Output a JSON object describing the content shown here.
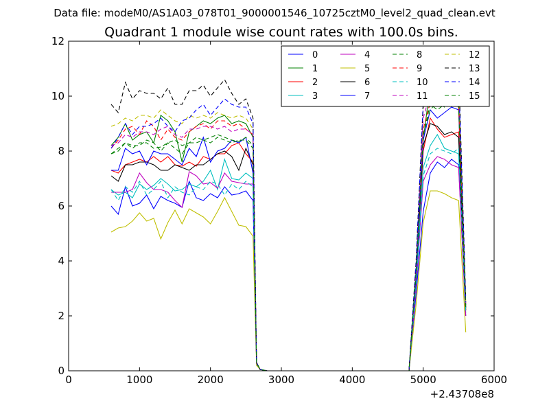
{
  "chart_data": {
    "type": "line",
    "suptitle": "Data file: modeM0/AS1A03_078T01_9000001546_10725cztM0_level2_quad_clean.evt",
    "title": "Quadrant 1 module wise count rates with 100.0s bins.",
    "xlabel": "",
    "ylabel": "",
    "xlim": [
      0,
      6000
    ],
    "ylim": [
      0,
      12
    ],
    "x_offset_label": "+2.43708e8",
    "xticks": [
      0,
      1000,
      2000,
      3000,
      4000,
      5000,
      6000
    ],
    "yticks": [
      0,
      2,
      4,
      6,
      8,
      10,
      12
    ],
    "grid": false,
    "legend_position": "top-right",
    "legend_columns": 4,
    "x": [
      600,
      700,
      800,
      900,
      1000,
      1100,
      1200,
      1300,
      1400,
      1500,
      1600,
      1700,
      1800,
      1900,
      2000,
      2100,
      2200,
      2300,
      2400,
      2500,
      2600,
      2650,
      2700,
      2800,
      2900,
      3000,
      3500,
      4000,
      4500,
      4800,
      4900,
      5000,
      5100,
      5200,
      5300,
      5400,
      5500,
      5600
    ],
    "series": [
      {
        "name": "0",
        "color": "#0000ff",
        "dash": "solid",
        "values": [
          6.0,
          5.7,
          6.7,
          6.0,
          6.1,
          6.4,
          5.9,
          6.35,
          6.2,
          6.1,
          5.95,
          6.9,
          6.3,
          6.2,
          6.45,
          6.3,
          6.7,
          6.4,
          6.45,
          6.55,
          6.2,
          0.25,
          0.05,
          0,
          0,
          0,
          0,
          0,
          0,
          0,
          2.8,
          5.8,
          7.2,
          7.6,
          7.4,
          7.7,
          7.5,
          2.0
        ]
      },
      {
        "name": "1",
        "color": "#008000",
        "dash": "solid",
        "values": [
          8.2,
          8.5,
          9.0,
          8.4,
          8.6,
          8.7,
          8.3,
          9.3,
          9.1,
          8.7,
          7.6,
          8.7,
          8.9,
          9.1,
          9.0,
          9.2,
          9.3,
          9.0,
          9.1,
          9.0,
          8.5,
          0.3,
          0.05,
          0,
          0,
          0,
          0,
          0,
          0,
          0,
          3.6,
          8.4,
          10.4,
          10.7,
          10.4,
          10.2,
          9.8,
          2.4
        ]
      },
      {
        "name": "2",
        "color": "#ff0000",
        "dash": "solid",
        "values": [
          7.3,
          7.2,
          7.5,
          7.6,
          7.7,
          7.6,
          7.8,
          7.6,
          7.8,
          7.5,
          7.45,
          7.6,
          7.45,
          7.8,
          7.7,
          7.9,
          7.9,
          8.2,
          8.3,
          7.9,
          7.6,
          0.3,
          0.05,
          0,
          0,
          0,
          0,
          0,
          0,
          0,
          3.4,
          8.0,
          9.2,
          8.8,
          8.5,
          8.6,
          8.7,
          2.2
        ]
      },
      {
        "name": "3",
        "color": "#00bfbf",
        "dash": "solid",
        "values": [
          6.6,
          6.4,
          6.5,
          6.3,
          6.8,
          6.6,
          6.75,
          7.0,
          6.8,
          6.55,
          6.6,
          6.8,
          6.7,
          6.9,
          7.3,
          6.6,
          7.7,
          7.0,
          6.95,
          7.2,
          7.0,
          0.3,
          0.05,
          0,
          0,
          0,
          0,
          0,
          0,
          0,
          3.2,
          7.4,
          8.2,
          8.6,
          8.1,
          8.0,
          7.9,
          2.1
        ]
      },
      {
        "name": "4",
        "color": "#bf00bf",
        "dash": "solid",
        "values": [
          6.5,
          6.5,
          6.5,
          6.6,
          7.2,
          6.85,
          6.6,
          6.6,
          6.5,
          6.2,
          5.95,
          7.25,
          7.1,
          6.8,
          6.85,
          6.65,
          7.2,
          6.9,
          6.85,
          6.8,
          6.8,
          0.3,
          0.05,
          0,
          0,
          0,
          0,
          0,
          0,
          0,
          3.0,
          6.9,
          7.5,
          7.8,
          7.7,
          7.5,
          7.4,
          2.0
        ]
      },
      {
        "name": "5",
        "color": "#bfbf00",
        "dash": "solid",
        "values": [
          5.05,
          5.2,
          5.25,
          5.45,
          5.75,
          5.45,
          5.55,
          4.8,
          5.4,
          5.85,
          5.35,
          5.9,
          5.75,
          5.6,
          5.35,
          5.8,
          6.3,
          5.8,
          5.3,
          5.25,
          4.9,
          0.2,
          0.05,
          0,
          0,
          0,
          0,
          0,
          0,
          0,
          2.4,
          5.4,
          6.55,
          6.55,
          6.45,
          6.3,
          6.2,
          1.4
        ]
      },
      {
        "name": "6",
        "color": "#000000",
        "dash": "solid",
        "values": [
          7.1,
          6.9,
          7.5,
          7.5,
          7.6,
          7.6,
          7.5,
          7.3,
          7.3,
          7.5,
          7.4,
          7.3,
          7.5,
          7.5,
          7.7,
          7.9,
          8.0,
          7.8,
          7.3,
          8.1,
          7.5,
          0.3,
          0.05,
          0,
          0,
          0,
          0,
          0,
          0,
          0,
          3.5,
          8.2,
          9.0,
          8.9,
          8.6,
          8.7,
          8.5,
          2.2
        ]
      },
      {
        "name": "7",
        "color": "#0000ff",
        "dash": "solid",
        "values": [
          7.3,
          7.3,
          8.1,
          7.9,
          8.0,
          7.5,
          8.0,
          7.9,
          7.9,
          7.7,
          7.5,
          8.1,
          7.8,
          8.5,
          7.6,
          8.0,
          8.1,
          8.4,
          8.3,
          8.5,
          7.2,
          0.3,
          0.05,
          0,
          0,
          0,
          0,
          0,
          0,
          0,
          3.6,
          8.4,
          9.5,
          9.2,
          9.4,
          9.6,
          9.5,
          2.3
        ]
      },
      {
        "name": "8",
        "color": "#008000",
        "dash": "dashed",
        "values": [
          7.9,
          8.1,
          8.3,
          8.1,
          8.3,
          8.3,
          8.1,
          8.15,
          8.3,
          8.4,
          8.2,
          8.3,
          8.5,
          8.4,
          8.5,
          8.6,
          8.5,
          8.4,
          8.35,
          8.5,
          8.2,
          0.3,
          0.05,
          0,
          0,
          0,
          0,
          0,
          0,
          0,
          3.6,
          8.6,
          9.5,
          9.8,
          9.6,
          9.8,
          9.7,
          2.3
        ]
      },
      {
        "name": "9",
        "color": "#ff0000",
        "dash": "dashed",
        "values": [
          8.1,
          8.4,
          8.8,
          8.9,
          8.6,
          9.1,
          8.9,
          8.4,
          8.8,
          8.5,
          8.4,
          8.7,
          8.9,
          9.0,
          8.8,
          9.1,
          9.1,
          8.9,
          9.0,
          8.8,
          8.6,
          0.3,
          0.05,
          0,
          0,
          0,
          0,
          0,
          0,
          0,
          3.7,
          8.8,
          9.8,
          9.7,
          9.8,
          9.9,
          9.7,
          2.4
        ]
      },
      {
        "name": "10",
        "color": "#00bfbf",
        "dash": "dashed",
        "values": [
          6.6,
          6.2,
          6.7,
          6.5,
          6.9,
          6.4,
          6.6,
          6.9,
          6.3,
          6.7,
          6.5,
          6.4,
          6.7,
          6.6,
          6.9,
          6.8,
          6.4,
          6.8,
          6.6,
          6.9,
          6.7,
          0.3,
          0.05,
          0,
          0,
          0,
          0,
          0,
          0,
          0,
          3.1,
          7.1,
          7.9,
          8.1,
          8.0,
          7.9,
          8.1,
          2.1
        ]
      },
      {
        "name": "11",
        "color": "#bf00bf",
        "dash": "dashed",
        "values": [
          8.2,
          8.3,
          8.6,
          8.5,
          8.7,
          8.7,
          8.6,
          8.8,
          8.9,
          8.6,
          8.5,
          8.8,
          8.8,
          8.9,
          8.9,
          8.8,
          8.9,
          8.7,
          8.8,
          8.8,
          8.6,
          0.3,
          0.05,
          0,
          0,
          0,
          0,
          0,
          0,
          0,
          3.7,
          9.2,
          10.1,
          9.9,
          10.0,
          10.2,
          10.1,
          2.4
        ]
      },
      {
        "name": "12",
        "color": "#bfbf00",
        "dash": "dashed",
        "values": [
          8.9,
          9.0,
          9.2,
          9.1,
          9.3,
          9.3,
          9.2,
          9.5,
          9.3,
          9.1,
          9.0,
          9.3,
          9.2,
          9.3,
          9.2,
          9.4,
          9.3,
          9.2,
          9.3,
          9.2,
          8.8,
          0.3,
          0.05,
          0,
          0,
          0,
          0,
          0,
          0,
          0,
          3.8,
          9.5,
          10.6,
          10.4,
          10.6,
          10.5,
          10.6,
          2.5
        ]
      },
      {
        "name": "13",
        "color": "#000000",
        "dash": "dashed",
        "values": [
          9.7,
          9.4,
          10.5,
          9.9,
          10.2,
          10.1,
          10.1,
          9.9,
          10.3,
          9.7,
          9.7,
          10.2,
          10.2,
          10.4,
          10.0,
          10.3,
          10.6,
          10.1,
          9.7,
          9.9,
          9.2,
          0.3,
          0.05,
          0,
          0,
          0,
          0,
          0,
          0,
          0,
          4.0,
          9.8,
          11.2,
          11.2,
          11.0,
          11.3,
          11.1,
          2.6
        ]
      },
      {
        "name": "14",
        "color": "#0000ff",
        "dash": "dashed",
        "values": [
          8.1,
          8.5,
          9.0,
          8.6,
          8.9,
          8.9,
          9.0,
          9.2,
          8.9,
          8.7,
          9.1,
          9.2,
          9.5,
          9.7,
          9.3,
          9.6,
          9.9,
          9.7,
          9.6,
          9.6,
          9.0,
          0.3,
          0.05,
          0,
          0,
          0,
          0,
          0,
          0,
          0,
          3.9,
          9.7,
          10.9,
          10.8,
          10.6,
          11.0,
          10.7,
          2.5
        ]
      },
      {
        "name": "15",
        "color": "#008000",
        "dash": "dashed",
        "values": [
          7.9,
          8.0,
          8.3,
          8.2,
          8.2,
          8.4,
          8.3,
          8.0,
          8.3,
          8.1,
          7.9,
          8.3,
          8.3,
          8.4,
          8.3,
          8.5,
          8.4,
          8.3,
          8.4,
          8.4,
          8.1,
          0.3,
          0.05,
          0,
          0,
          0,
          0,
          0,
          0,
          0,
          3.6,
          8.6,
          9.7,
          9.5,
          9.7,
          9.8,
          9.6,
          2.3
        ]
      }
    ]
  }
}
